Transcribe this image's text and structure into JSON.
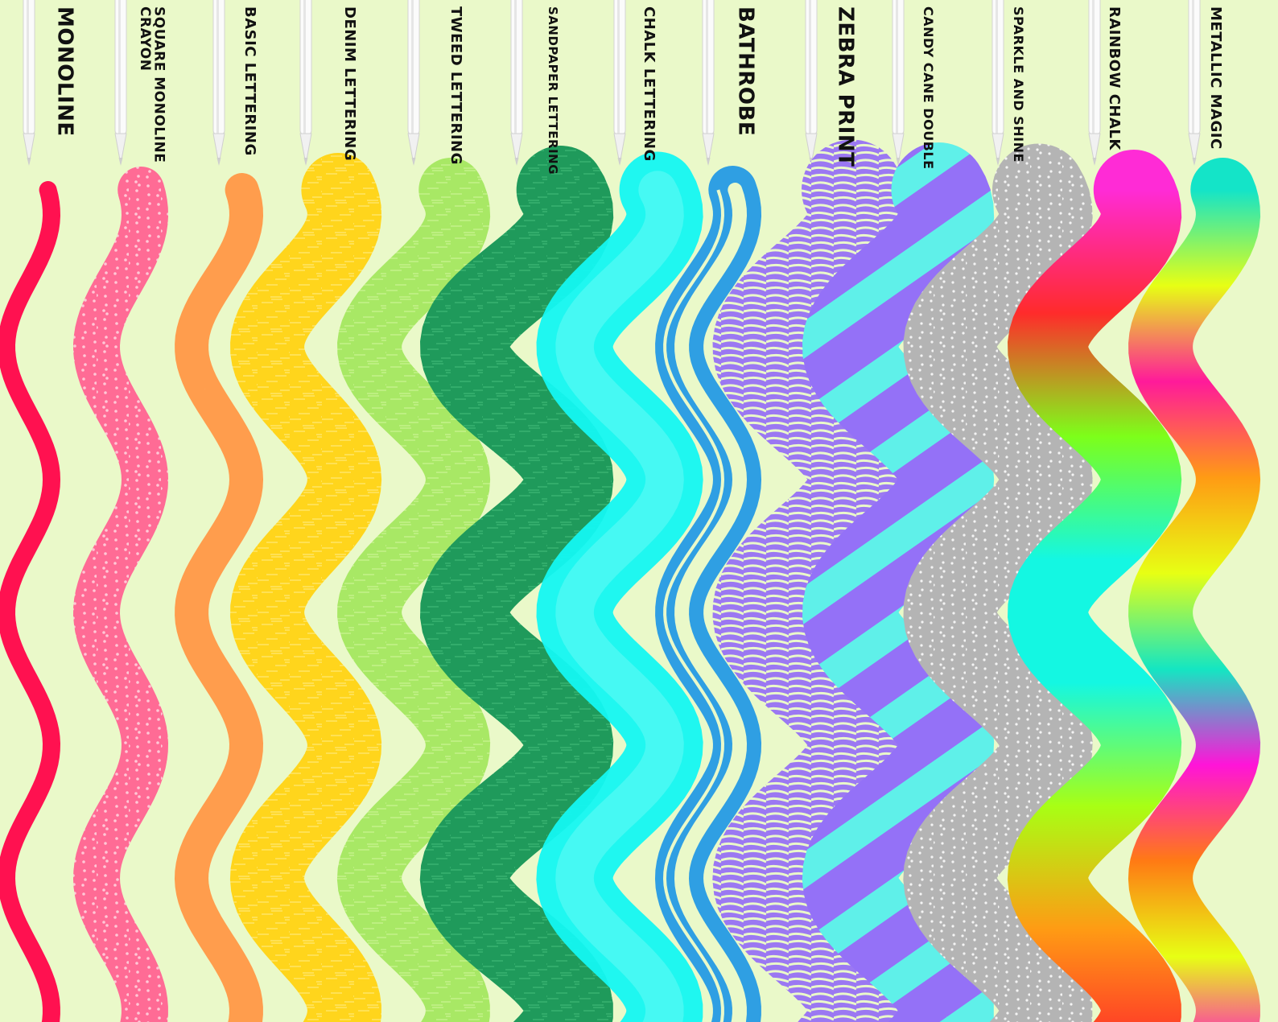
{
  "background_color": "#eaf9c9",
  "brushes": [
    {
      "label": "Monoline",
      "style": "solid",
      "colors": [
        "#ff1150"
      ]
    },
    {
      "label": "Square Monoline\nCrayon",
      "style": "speckle",
      "colors": [
        "#ff6b95",
        "#ffc7d6"
      ]
    },
    {
      "label": "Basic Lettering",
      "style": "solid",
      "colors": [
        "#ff9d4d"
      ]
    },
    {
      "label": "Denim Lettering",
      "style": "texture",
      "colors": [
        "#ffd51c",
        "#ffe97a"
      ]
    },
    {
      "label": "Tweed Lettering",
      "style": "texture",
      "colors": [
        "#a8e865",
        "#cbf494"
      ]
    },
    {
      "label": "Sandpaper Lettering",
      "style": "grain",
      "colors": [
        "#1f9a5b",
        "#3fb777"
      ]
    },
    {
      "label": "Chalk Lettering",
      "style": "soft",
      "colors": [
        "#14f7f2",
        "#8ffcf8"
      ]
    },
    {
      "label": "Bathrobe",
      "style": "double",
      "colors": [
        "#2f9fe3"
      ]
    },
    {
      "label": "Zebra Print",
      "style": "zebra",
      "colors": [
        "#9b78f2",
        "#eaf9c9"
      ]
    },
    {
      "label": "Candy Cane Double",
      "style": "stripes",
      "colors": [
        "#9471f7",
        "#5ff0e9"
      ]
    },
    {
      "label": "Sparkle and Shine",
      "style": "glitter",
      "colors": [
        "#b4b4b4",
        "#f4f4f4"
      ]
    },
    {
      "label": "Rainbow Chalk",
      "style": "gradient",
      "colors": [
        "#ff2bd6",
        "#ff2b2b",
        "#7dff1a",
        "#14f7e2",
        "#14f7e2",
        "#a8ff14",
        "#ff9b14",
        "#ff2b2b"
      ]
    },
    {
      "label": "Metallic Magic",
      "style": "gradient",
      "colors": [
        "#14e4c8",
        "#e7ff14",
        "#ff1a9a",
        "#ff9b14",
        "#e7ff14",
        "#14e6c2",
        "#ff14d8",
        "#ff7a14",
        "#e7ff14",
        "#ff14c8"
      ]
    }
  ]
}
